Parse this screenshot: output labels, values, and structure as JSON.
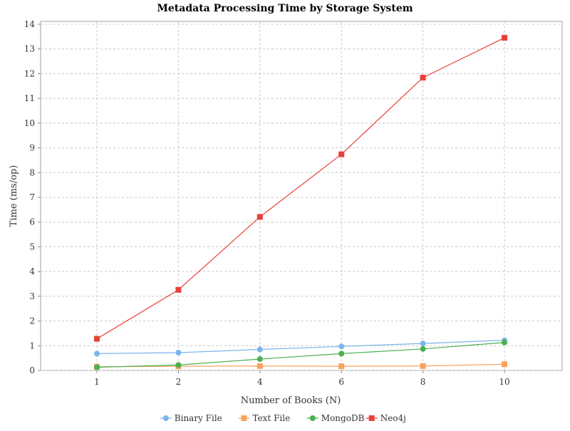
{
  "chart_data": {
    "type": "line",
    "title": "Metadata Processing Time by Storage System",
    "xlabel": "Number of Books (N)",
    "ylabel": "Time (ms/op)",
    "categories": [
      "1",
      "2",
      "4",
      "6",
      "8",
      "10"
    ],
    "ylim": [
      0,
      14
    ],
    "yticks": [
      "0",
      "1",
      "2",
      "3",
      "4",
      "5",
      "6",
      "7",
      "8",
      "9",
      "10",
      "11",
      "12",
      "13",
      "14"
    ],
    "grid": true,
    "legend_position": "bottom",
    "series": [
      {
        "name": "Binary File",
        "color": "#7cb5ec",
        "marker": "circle",
        "values": [
          0.68,
          0.72,
          0.85,
          0.97,
          1.09,
          1.22
        ]
      },
      {
        "name": "Text File",
        "color": "#f7a35c",
        "marker": "square",
        "values": [
          0.15,
          0.17,
          0.18,
          0.17,
          0.18,
          0.25
        ]
      },
      {
        "name": "MongoDB",
        "color": "#4caf50",
        "marker": "circle",
        "values": [
          0.13,
          0.22,
          0.46,
          0.68,
          0.87,
          1.13
        ]
      },
      {
        "name": "Neo4j",
        "color": "#e8403a",
        "marker": "square",
        "values": [
          1.28,
          3.26,
          6.21,
          8.74,
          11.84,
          13.45
        ]
      }
    ]
  }
}
